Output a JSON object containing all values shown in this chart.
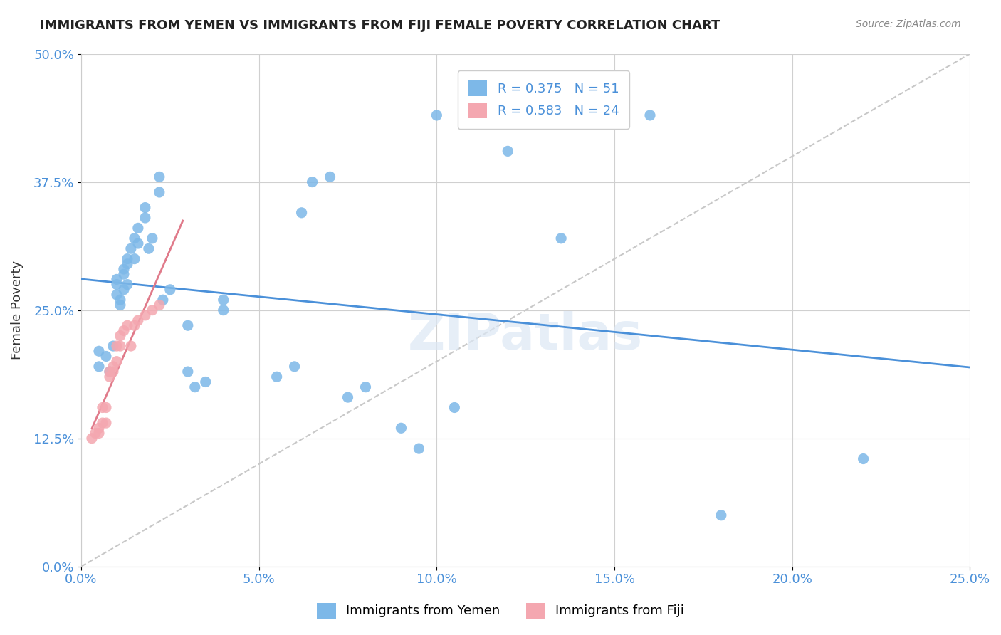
{
  "title": "IMMIGRANTS FROM YEMEN VS IMMIGRANTS FROM FIJI FEMALE POVERTY CORRELATION CHART",
  "source": "Source: ZipAtlas.com",
  "xlabel_ticks": [
    "0.0%",
    "5.0%",
    "10.0%",
    "15.0%",
    "20.0%",
    "25.0%"
  ],
  "ylabel_ticks": [
    "0.0%",
    "12.5%",
    "25.0%",
    "37.5%",
    "50.0%"
  ],
  "xlim": [
    0.0,
    0.25
  ],
  "ylim": [
    0.0,
    0.5
  ],
  "yemen_color": "#7db8e8",
  "fiji_color": "#f4a7b0",
  "yemen_R": 0.375,
  "yemen_N": 51,
  "fiji_R": 0.583,
  "fiji_N": 24,
  "yemen_line_color": "#4a90d9",
  "fiji_line_color": "#e07a8a",
  "diagonal_color": "#c8c8c8",
  "watermark": "ZIPatlas",
  "yemen_scatter_x": [
    0.005,
    0.005,
    0.007,
    0.008,
    0.009,
    0.01,
    0.01,
    0.01,
    0.011,
    0.011,
    0.012,
    0.012,
    0.012,
    0.013,
    0.013,
    0.013,
    0.014,
    0.015,
    0.015,
    0.016,
    0.016,
    0.018,
    0.018,
    0.019,
    0.02,
    0.022,
    0.022,
    0.023,
    0.025,
    0.03,
    0.03,
    0.032,
    0.035,
    0.04,
    0.04,
    0.055,
    0.06,
    0.062,
    0.065,
    0.07,
    0.075,
    0.08,
    0.09,
    0.095,
    0.1,
    0.105,
    0.12,
    0.135,
    0.16,
    0.18,
    0.22
  ],
  "yemen_scatter_y": [
    0.21,
    0.195,
    0.205,
    0.19,
    0.215,
    0.28,
    0.275,
    0.265,
    0.26,
    0.255,
    0.29,
    0.285,
    0.27,
    0.3,
    0.295,
    0.275,
    0.31,
    0.32,
    0.3,
    0.33,
    0.315,
    0.35,
    0.34,
    0.31,
    0.32,
    0.38,
    0.365,
    0.26,
    0.27,
    0.235,
    0.19,
    0.175,
    0.18,
    0.25,
    0.26,
    0.185,
    0.195,
    0.345,
    0.375,
    0.38,
    0.165,
    0.175,
    0.135,
    0.115,
    0.44,
    0.155,
    0.405,
    0.32,
    0.44,
    0.05,
    0.105
  ],
  "fiji_scatter_x": [
    0.003,
    0.004,
    0.005,
    0.005,
    0.006,
    0.006,
    0.007,
    0.007,
    0.008,
    0.008,
    0.009,
    0.009,
    0.01,
    0.01,
    0.011,
    0.011,
    0.012,
    0.013,
    0.014,
    0.015,
    0.016,
    0.018,
    0.02,
    0.022
  ],
  "fiji_scatter_y": [
    0.125,
    0.13,
    0.135,
    0.13,
    0.14,
    0.155,
    0.155,
    0.14,
    0.19,
    0.185,
    0.195,
    0.19,
    0.215,
    0.2,
    0.215,
    0.225,
    0.23,
    0.235,
    0.215,
    0.235,
    0.24,
    0.245,
    0.25,
    0.255
  ]
}
